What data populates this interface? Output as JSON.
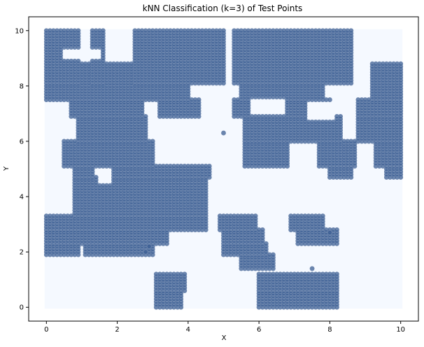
{
  "chart_data": {
    "type": "scatter",
    "title": "kNN Classification (k=3) of Test Points",
    "xlabel": "X",
    "ylabel": "Y",
    "xlim": [
      -0.5,
      10.5
    ],
    "ylim": [
      -0.5,
      10.5
    ],
    "x_ticks": [
      0,
      2,
      4,
      6,
      8,
      10
    ],
    "y_ticks": [
      0,
      2,
      4,
      6,
      8,
      10
    ],
    "grid": false,
    "legend": "none",
    "background_class_color": "#f5f9ff",
    "point_fill_color": "#3b5d93",
    "point_edge_color": "#6d86ad",
    "grid_step": 0.1,
    "region_class": "class-1 (dark blue)",
    "region_rows": [
      {
        "y_min": 8.1,
        "y_max": 10.0,
        "x_ranges": [
          [
            0.0,
            0.9
          ],
          [
            1.3,
            1.6
          ],
          [
            2.5,
            5.0
          ],
          [
            5.3,
            7.4
          ],
          [
            7.4,
            8.6
          ]
        ]
      },
      {
        "y_min": 7.5,
        "y_max": 8.8,
        "x_ranges": [
          [
            0.0,
            2.5
          ],
          [
            2.5,
            4.0
          ],
          [
            5.5,
            7.8
          ],
          [
            9.2,
            10.0
          ]
        ]
      },
      {
        "y_min": 6.9,
        "y_max": 7.5,
        "x_ranges": [
          [
            0.7,
            2.7
          ],
          [
            3.2,
            4.3
          ],
          [
            5.3,
            8.0
          ],
          [
            8.8,
            10.0
          ]
        ]
      },
      {
        "y_min": 6.0,
        "y_max": 6.9,
        "x_ranges": [
          [
            0.9,
            2.8
          ],
          [
            5.6,
            7.4
          ],
          [
            7.4,
            8.3
          ],
          [
            8.8,
            10.0
          ]
        ]
      },
      {
        "y_min": 5.1,
        "y_max": 6.0,
        "x_ranges": [
          [
            0.5,
            3.0
          ],
          [
            5.6,
            6.8
          ],
          [
            7.7,
            8.7
          ],
          [
            9.3,
            10.0
          ]
        ]
      },
      {
        "y_min": 4.7,
        "y_max": 5.1,
        "x_ranges": [
          [
            0.8,
            1.3
          ],
          [
            1.9,
            4.6
          ],
          [
            8.0,
            8.6
          ],
          [
            9.6,
            10.0
          ]
        ]
      },
      {
        "y_min": 3.3,
        "y_max": 4.7,
        "x_ranges": [
          [
            0.8,
            4.5
          ]
        ]
      },
      {
        "y_min": 2.8,
        "y_max": 3.3,
        "x_ranges": [
          [
            0.0,
            4.5
          ],
          [
            4.9,
            5.9
          ],
          [
            6.9,
            7.8
          ]
        ]
      },
      {
        "y_min": 2.3,
        "y_max": 2.8,
        "x_ranges": [
          [
            0.0,
            3.4
          ],
          [
            5.0,
            6.1
          ],
          [
            7.1,
            8.2
          ]
        ]
      },
      {
        "y_min": 1.9,
        "y_max": 2.3,
        "x_ranges": [
          [
            0.0,
            0.9
          ],
          [
            1.1,
            3.0
          ],
          [
            5.0,
            6.2
          ]
        ]
      },
      {
        "y_min": 1.4,
        "y_max": 1.9,
        "x_ranges": [
          [
            5.5,
            6.4
          ]
        ]
      },
      {
        "y_min": 0.6,
        "y_max": 1.2,
        "x_ranges": [
          [
            3.1,
            3.9
          ],
          [
            6.0,
            8.2
          ]
        ]
      },
      {
        "y_min": 0.0,
        "y_max": 0.6,
        "x_ranges": [
          [
            3.1,
            3.8
          ],
          [
            6.0,
            8.2
          ]
        ]
      }
    ],
    "holes": [
      {
        "x_min": 0.5,
        "x_max": 1.5,
        "y_min": 9.0,
        "y_max": 9.3
      },
      {
        "x_min": 1.5,
        "x_max": 1.9,
        "y_min": 4.5,
        "y_max": 4.9
      },
      {
        "x_min": 5.8,
        "x_max": 6.8,
        "y_min": 7.0,
        "y_max": 7.6
      },
      {
        "x_min": 7.4,
        "x_max": 8.2,
        "y_min": 6.8,
        "y_max": 7.4
      }
    ],
    "isolated_points": [
      {
        "x": 5.0,
        "y": 6.3
      },
      {
        "x": 2.8,
        "y": 2.0
      },
      {
        "x": 2.9,
        "y": 2.2
      },
      {
        "x": 7.5,
        "y": 1.4
      },
      {
        "x": 8.0,
        "y": 2.7
      }
    ]
  }
}
